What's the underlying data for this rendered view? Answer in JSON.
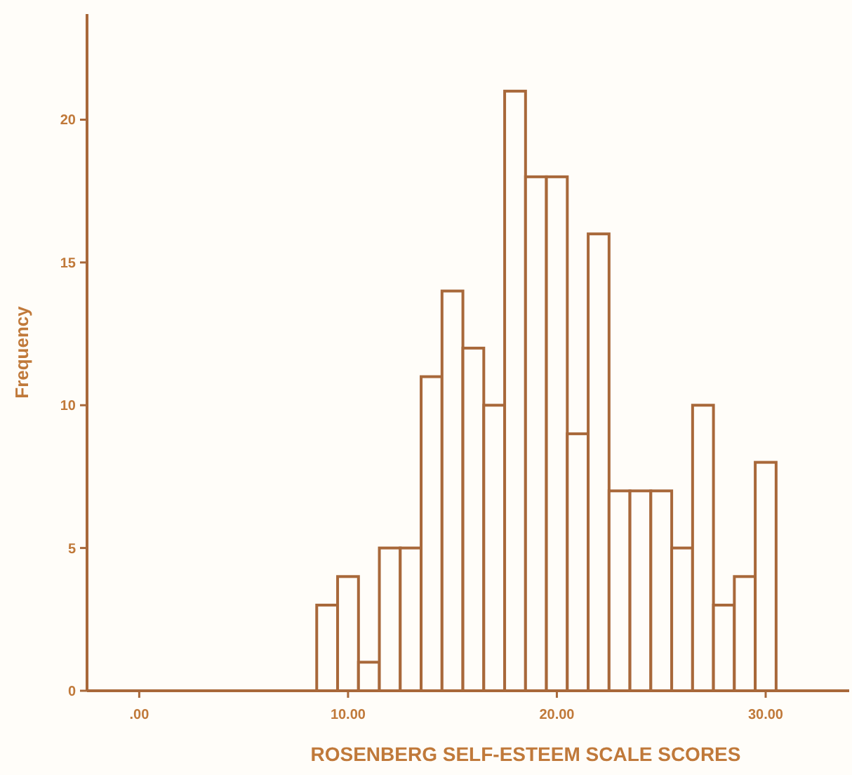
{
  "chart_data": {
    "type": "histogram",
    "xlabel": "ROSENBERG SELF-ESTEEM SCALE SCORES",
    "ylabel": "Frequency",
    "color": "#a8683a",
    "bins": [
      8.5,
      9.5,
      10.5,
      11.5,
      12.5,
      13.5,
      14.5,
      15.5,
      16.5,
      17.5,
      18.5,
      19.5,
      20.5,
      21.5,
      22.5,
      23.5,
      24.5,
      25.5,
      26.5,
      27.5,
      28.5,
      29.5,
      30.5
    ],
    "values": [
      3,
      4,
      1,
      5,
      5,
      11,
      14,
      12,
      10,
      21,
      18,
      18,
      9,
      16,
      7,
      7,
      7,
      5,
      10,
      3,
      4,
      8
    ],
    "xlim": [
      -2.5,
      34
    ],
    "ylim": [
      0,
      23.7
    ],
    "xticks": [
      {
        "value": 0,
        "label": ".00"
      },
      {
        "value": 10,
        "label": "10.00"
      },
      {
        "value": 20,
        "label": "20.00"
      },
      {
        "value": 30,
        "label": "30.00"
      }
    ],
    "yticks": [
      0,
      5,
      10,
      15,
      20
    ],
    "grid": false
  }
}
